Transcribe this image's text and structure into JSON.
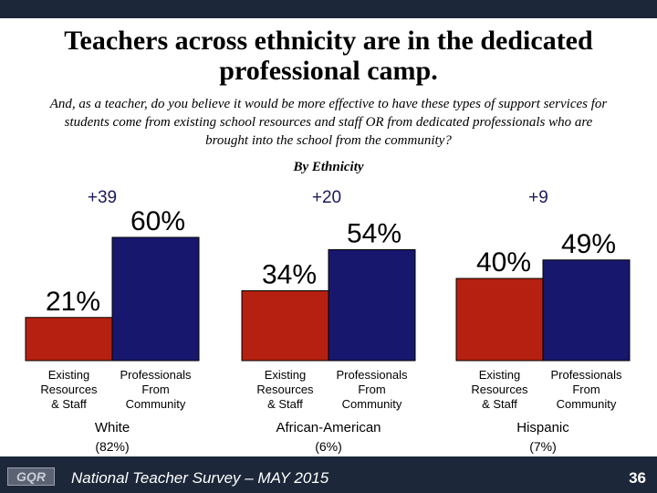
{
  "title": "Teachers across ethnicity are in the dedicated professional camp.",
  "question": "And, as a teacher, do you believe it would be more effective to have these types of support services for students come from existing school resources and staff OR from dedicated professionals who are brought into the school from the community?",
  "subtitle": "By Ethnicity",
  "chart_data": {
    "type": "bar",
    "subtitle": "By Ethnicity",
    "groups": [
      {
        "label": "White",
        "share": "(82%)",
        "diff": "+39"
      },
      {
        "label": "African-American",
        "share": "(6%)",
        "diff": "+20"
      },
      {
        "label": "Hispanic",
        "share": "(7%)",
        "diff": "+9"
      }
    ],
    "series": [
      {
        "name": "Existing Resources & Staff",
        "label_lines": [
          "Existing",
          "Resources",
          "& Staff"
        ],
        "color": "#b52010",
        "values": [
          21,
          34,
          40
        ]
      },
      {
        "name": "Professionals From Community",
        "label_lines": [
          "Professionals",
          "From",
          "Community"
        ],
        "color": "#17176e",
        "values": [
          60,
          54,
          49
        ]
      }
    ],
    "value_suffix": "%"
  },
  "colors": {
    "existing": "#b52010",
    "professionals": "#17176e",
    "band": "#1c2739",
    "diff_text": "#1a1a5c"
  },
  "footer": {
    "logo": "GQR",
    "survey": "National Teacher Survey – MAY 2015",
    "page": "36"
  }
}
